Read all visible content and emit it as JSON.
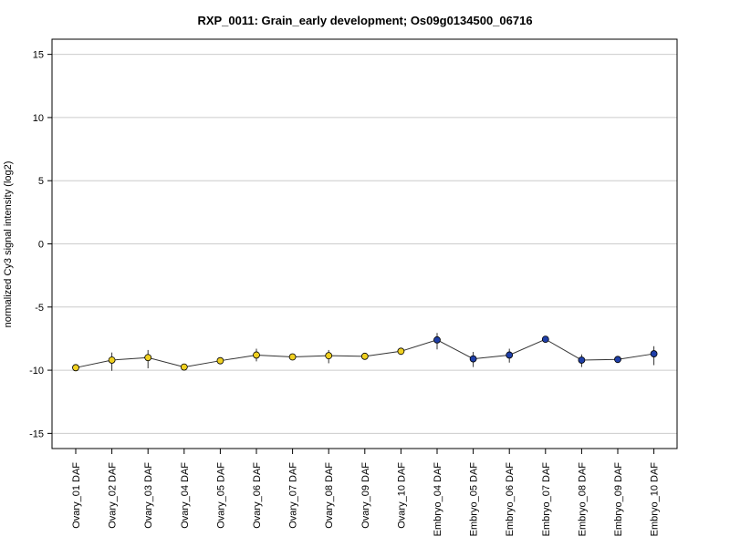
{
  "chart_data": {
    "type": "line",
    "title": "RXP_0011: Grain_early development; Os09g0134500_06716",
    "xlabel": "",
    "ylabel": "normalized Cy3 signal intensity (log2)",
    "ylim": [
      -16.2,
      16.2
    ],
    "yticks": [
      -15,
      -10,
      -5,
      0,
      5,
      10,
      15
    ],
    "ytick_labels": [
      "-15",
      "-10",
      "-5",
      "0",
      "5",
      "10",
      "15"
    ],
    "grid": "horizontal",
    "categories": [
      "Ovary_01 DAF",
      "Ovary_02 DAF",
      "Ovary_03 DAF",
      "Ovary_04 DAF",
      "Ovary_05 DAF",
      "Ovary_06 DAF",
      "Ovary_07 DAF",
      "Ovary_08 DAF",
      "Ovary_09 DAF",
      "Ovary_10 DAF",
      "Embryo_04 DAF",
      "Embryo_05 DAF",
      "Embryo_06 DAF",
      "Embryo_07 DAF",
      "Embryo_08 DAF",
      "Embryo_09 DAF",
      "Embryo_10 DAF"
    ],
    "values": [
      -9.8,
      -9.2,
      -9.0,
      -9.75,
      -9.25,
      -8.8,
      -8.95,
      -8.85,
      -8.9,
      -8.5,
      -7.6,
      -9.1,
      -8.8,
      -7.55,
      -9.2,
      -9.15,
      -8.7
    ],
    "error_low": [
      -9.95,
      -10.05,
      -9.85,
      -9.9,
      -9.4,
      -9.3,
      -9.05,
      -9.45,
      -9.0,
      -8.65,
      -8.35,
      -9.75,
      -9.4,
      -7.65,
      -9.75,
      -9.25,
      -9.6
    ],
    "error_high": [
      -9.65,
      -8.6,
      -8.4,
      -9.6,
      -9.1,
      -8.3,
      -8.8,
      -8.4,
      -8.8,
      -8.35,
      -7.05,
      -8.55,
      -8.3,
      -7.45,
      -8.75,
      -9.05,
      -8.1
    ],
    "point_colors": [
      "#F0D020",
      "#F0D020",
      "#F0D020",
      "#F0D020",
      "#F0D020",
      "#F0D020",
      "#F0D020",
      "#F0D020",
      "#F0D020",
      "#F0D020",
      "#1F3FA8",
      "#1F3FA8",
      "#1F3FA8",
      "#1F3FA8",
      "#1F3FA8",
      "#1F3FA8",
      "#1F3FA8"
    ]
  }
}
